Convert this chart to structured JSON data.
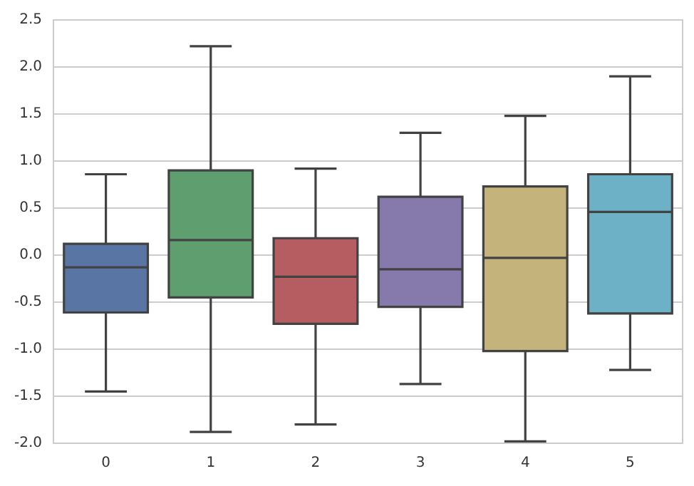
{
  "chart_data": {
    "type": "box",
    "categories": [
      "0",
      "1",
      "2",
      "3",
      "4",
      "5"
    ],
    "colors": [
      "#5875a4",
      "#5f9e6e",
      "#b55d60",
      "#857aab",
      "#c4b47c",
      "#6db1c7"
    ],
    "boxes": [
      {
        "low": -1.45,
        "q1": -0.61,
        "median": -0.13,
        "q3": 0.12,
        "high": 0.86
      },
      {
        "low": -1.88,
        "q1": -0.45,
        "median": 0.16,
        "q3": 0.9,
        "high": 2.22
      },
      {
        "low": -1.8,
        "q1": -0.73,
        "median": -0.23,
        "q3": 0.18,
        "high": 0.92
      },
      {
        "low": -1.37,
        "q1": -0.55,
        "median": -0.15,
        "q3": 0.62,
        "high": 1.3
      },
      {
        "low": -1.98,
        "q1": -1.02,
        "median": -0.03,
        "q3": 0.73,
        "high": 1.48
      },
      {
        "low": -1.22,
        "q1": -0.62,
        "median": 0.46,
        "q3": 0.86,
        "high": 1.9
      }
    ],
    "ylim": [
      -2.0,
      2.5
    ],
    "yticks": [
      {
        "value": -2,
        "label": "-2.0"
      },
      {
        "value": -1.5,
        "label": "-1.5"
      },
      {
        "value": -1,
        "label": "-1.0"
      },
      {
        "value": -0.5,
        "label": "-0.5"
      },
      {
        "value": 0,
        "label": "0.0"
      },
      {
        "value": 0.5,
        "label": "0.5"
      },
      {
        "value": 1,
        "label": "1.0"
      },
      {
        "value": 1.5,
        "label": "1.5"
      },
      {
        "value": 2,
        "label": "2.0"
      },
      {
        "value": 2.5,
        "label": "2.5"
      }
    ],
    "grid": "y"
  }
}
